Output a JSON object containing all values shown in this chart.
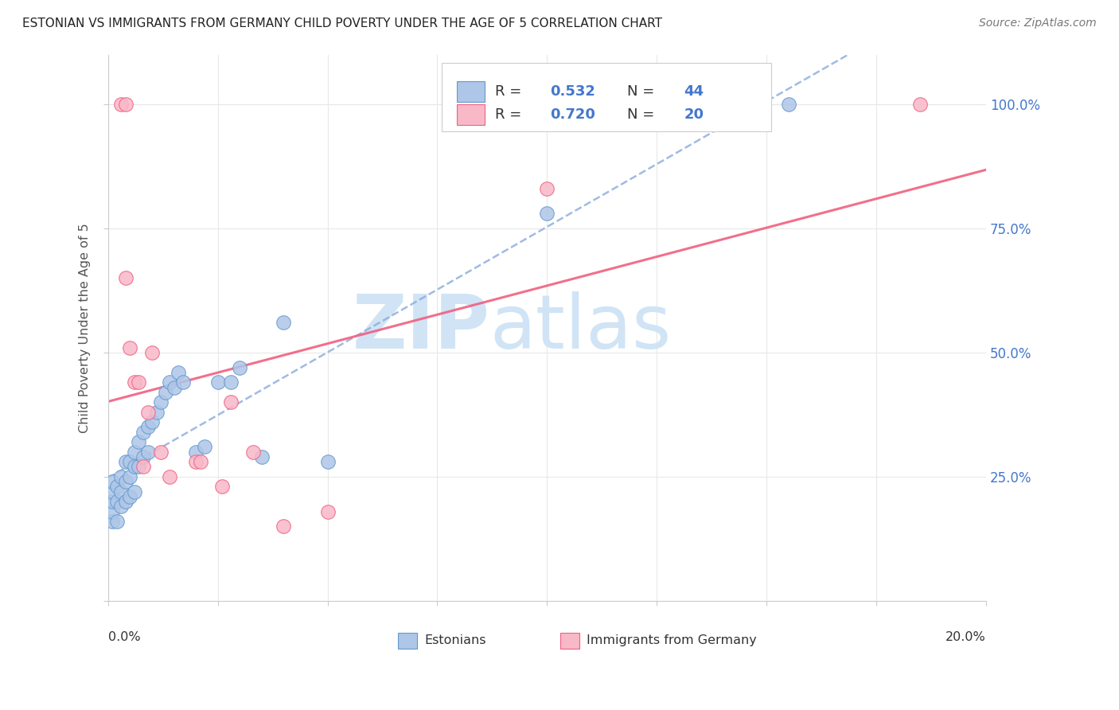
{
  "title": "ESTONIAN VS IMMIGRANTS FROM GERMANY CHILD POVERTY UNDER THE AGE OF 5 CORRELATION CHART",
  "source": "Source: ZipAtlas.com",
  "ylabel": "Child Poverty Under the Age of 5",
  "estonian_color": "#aec6e8",
  "estonian_edge": "#6699cc",
  "immigrant_color": "#f9b8c8",
  "immigrant_edge": "#f06080",
  "line_est_color": "#88aadd",
  "line_imm_color": "#f06080",
  "r1": "0.532",
  "n1": "44",
  "r2": "0.720",
  "n2": "20",
  "accent_blue": "#4477cc",
  "watermark_color": "#d0e4f5",
  "grid_color": "#e8e8e8",
  "background": "#ffffff",
  "est_x": [
    0.001,
    0.001,
    0.001,
    0.001,
    0.001,
    0.002,
    0.002,
    0.002,
    0.003,
    0.003,
    0.003,
    0.004,
    0.004,
    0.004,
    0.005,
    0.005,
    0.005,
    0.006,
    0.006,
    0.006,
    0.007,
    0.007,
    0.008,
    0.008,
    0.009,
    0.009,
    0.01,
    0.011,
    0.012,
    0.013,
    0.014,
    0.015,
    0.016,
    0.017,
    0.02,
    0.022,
    0.025,
    0.028,
    0.03,
    0.035,
    0.04,
    0.05,
    0.1,
    0.155
  ],
  "est_y": [
    0.16,
    0.18,
    0.2,
    0.22,
    0.24,
    0.16,
    0.2,
    0.23,
    0.19,
    0.22,
    0.25,
    0.2,
    0.24,
    0.28,
    0.21,
    0.25,
    0.28,
    0.22,
    0.27,
    0.3,
    0.27,
    0.32,
    0.29,
    0.34,
    0.3,
    0.35,
    0.36,
    0.38,
    0.4,
    0.42,
    0.44,
    0.43,
    0.46,
    0.44,
    0.3,
    0.31,
    0.44,
    0.44,
    0.47,
    0.29,
    0.56,
    0.28,
    0.78,
    1.0
  ],
  "imm_x": [
    0.003,
    0.004,
    0.004,
    0.005,
    0.006,
    0.007,
    0.008,
    0.009,
    0.01,
    0.012,
    0.014,
    0.02,
    0.021,
    0.026,
    0.028,
    0.033,
    0.04,
    0.05,
    0.1,
    0.185
  ],
  "imm_y": [
    1.0,
    1.0,
    0.65,
    0.51,
    0.44,
    0.44,
    0.27,
    0.38,
    0.5,
    0.3,
    0.25,
    0.28,
    0.28,
    0.23,
    0.4,
    0.3,
    0.15,
    0.18,
    0.83,
    1.0
  ],
  "xlim": [
    0.0,
    0.2
  ],
  "ylim": [
    0.0,
    1.1
  ],
  "xtick_positions": [
    0.0,
    0.025,
    0.05,
    0.075,
    0.1,
    0.125,
    0.15,
    0.175,
    0.2
  ],
  "ytick_positions": [
    0.0,
    0.25,
    0.5,
    0.75,
    1.0
  ],
  "right_ytick_labels": [
    "100.0%",
    "75.0%",
    "50.0%",
    "25.0%"
  ],
  "right_ytick_values": [
    1.0,
    0.75,
    0.5,
    0.25
  ]
}
